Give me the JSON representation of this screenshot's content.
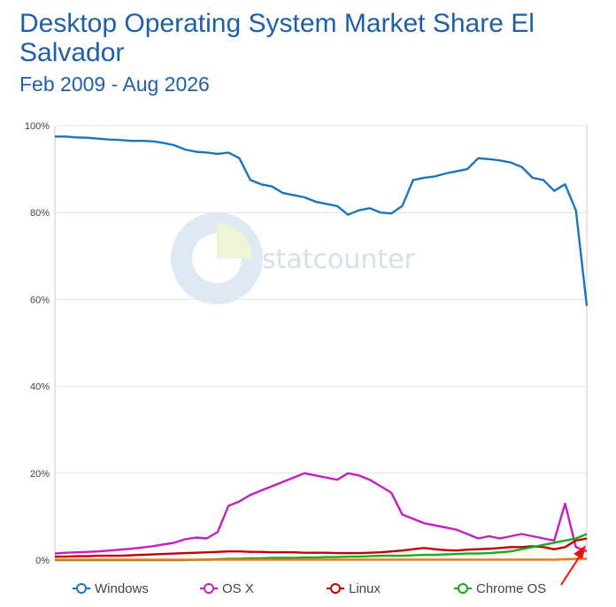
{
  "chart_data": {
    "type": "line",
    "title": "Desktop Operating System Market Share El Salvador",
    "subtitle": "Feb 2009 - Aug 2026",
    "ylim": [
      0,
      100
    ],
    "y_ticks": [
      "100%",
      "80%",
      "60%",
      "40%",
      "20%",
      "0%"
    ],
    "y_tick_values": [
      100,
      80,
      60,
      40,
      20,
      0
    ],
    "grid": true,
    "legend_position": "bottom",
    "watermark": "statcounter",
    "series": [
      {
        "name": "Windows",
        "color": "#1b75bc",
        "values": [
          97.5,
          97.5,
          97.3,
          97.2,
          97.0,
          96.8,
          96.7,
          96.5,
          96.5,
          96.4,
          96.0,
          95.5,
          94.5,
          94.0,
          93.8,
          93.5,
          93.8,
          92.5,
          87.5,
          86.5,
          86.0,
          84.5,
          84.0,
          83.5,
          82.5,
          82.0,
          81.5,
          79.5,
          80.5,
          81.0,
          80.0,
          79.8,
          81.5,
          87.5,
          88.0,
          88.3,
          89.0,
          89.5,
          90.0,
          92.5,
          92.3,
          92.0,
          91.5,
          90.5,
          88.0,
          87.5,
          85.0,
          86.5,
          80.5,
          58.5
        ]
      },
      {
        "name": "OS X",
        "color": "#c51ec1",
        "values": [
          1.5,
          1.7,
          1.8,
          1.9,
          2.0,
          2.2,
          2.4,
          2.6,
          2.9,
          3.2,
          3.6,
          4.0,
          4.8,
          5.2,
          5.0,
          6.5,
          12.5,
          13.5,
          15.0,
          16.0,
          17.0,
          18.0,
          19.0,
          20.0,
          19.5,
          19.0,
          18.5,
          20.0,
          19.5,
          18.5,
          17.0,
          15.5,
          10.5,
          9.5,
          8.5,
          8.0,
          7.5,
          7.0,
          6.0,
          5.0,
          5.5,
          5.0,
          5.5,
          6.0,
          5.5,
          5.0,
          4.5,
          13.0,
          3.0,
          2.0
        ]
      },
      {
        "name": "Linux",
        "color": "#c00000",
        "values": [
          0.8,
          0.8,
          0.9,
          0.9,
          1.0,
          1.0,
          1.0,
          1.1,
          1.2,
          1.3,
          1.4,
          1.5,
          1.6,
          1.7,
          1.8,
          1.9,
          2.0,
          2.0,
          1.9,
          1.9,
          1.8,
          1.8,
          1.8,
          1.7,
          1.7,
          1.7,
          1.6,
          1.6,
          1.6,
          1.7,
          1.8,
          2.0,
          2.2,
          2.5,
          2.8,
          2.5,
          2.3,
          2.2,
          2.4,
          2.5,
          2.6,
          2.8,
          3.0,
          3.0,
          3.2,
          3.0,
          2.5,
          3.0,
          4.5,
          5.0
        ]
      },
      {
        "name": "Chrome OS",
        "color": "#1aa91a",
        "values": [
          0.0,
          0.0,
          0.0,
          0.0,
          0.0,
          0.0,
          0.0,
          0.0,
          0.0,
          0.0,
          0.0,
          0.0,
          0.0,
          0.1,
          0.1,
          0.2,
          0.3,
          0.3,
          0.4,
          0.4,
          0.5,
          0.5,
          0.5,
          0.6,
          0.6,
          0.7,
          0.7,
          0.8,
          0.8,
          0.9,
          1.0,
          1.0,
          1.0,
          1.1,
          1.2,
          1.2,
          1.3,
          1.4,
          1.5,
          1.5,
          1.6,
          1.8,
          2.0,
          2.5,
          3.0,
          3.5,
          4.0,
          4.5,
          5.0,
          6.0
        ]
      },
      {
        "name": "",
        "color": "#e87d1c",
        "values": [
          0.1,
          0.1,
          0.1,
          0.1,
          0.1,
          0.1,
          0.1,
          0.1,
          0.1,
          0.1,
          0.1,
          0.1,
          0.1,
          0.1,
          0.1,
          0.1,
          0.1,
          0.1,
          0.1,
          0.1,
          0.1,
          0.1,
          0.1,
          0.1,
          0.1,
          0.1,
          0.1,
          0.1,
          0.1,
          0.1,
          0.1,
          0.1,
          0.1,
          0.1,
          0.1,
          0.1,
          0.1,
          0.1,
          0.1,
          0.1,
          0.1,
          0.1,
          0.1,
          0.1,
          0.1,
          0.1,
          0.1,
          0.2,
          0.3,
          0.3
        ]
      }
    ],
    "legend": [
      {
        "label": "Windows",
        "color": "#1b75bc"
      },
      {
        "label": "OS X",
        "color": "#c51ec1"
      },
      {
        "label": "Linux",
        "color": "#c00000"
      },
      {
        "label": "Chrome OS",
        "color": "#1aa91a"
      }
    ]
  }
}
